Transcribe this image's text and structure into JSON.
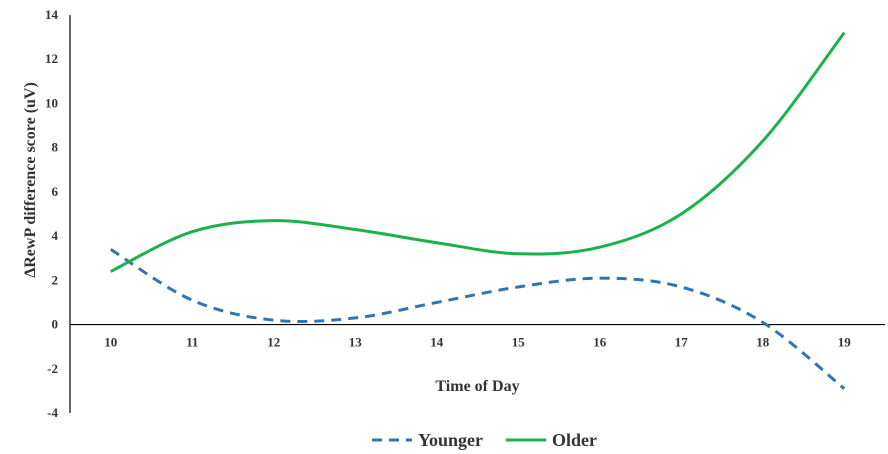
{
  "chart_data": {
    "type": "line",
    "title": "",
    "xlabel": "Time of Day",
    "ylabel": "ΔRewP difference score (uV)",
    "categories": [
      "10",
      "11",
      "12",
      "13",
      "14",
      "15",
      "16",
      "17",
      "18",
      "19"
    ],
    "ylim": [
      -4,
      14
    ],
    "yticks": [
      "14",
      "12",
      "10",
      "8",
      "6",
      "4",
      "2",
      "0",
      "-2",
      "-4"
    ],
    "grid": false,
    "legend_position": "bottom",
    "series": [
      {
        "name": "Younger",
        "style": "dashed",
        "color": "#2E75B6",
        "values": [
          3.4,
          1.1,
          0.2,
          0.3,
          1.0,
          1.7,
          2.1,
          1.7,
          0.1,
          -2.9
        ]
      },
      {
        "name": "Older",
        "style": "solid",
        "color": "#1DB14B",
        "values": [
          2.4,
          4.2,
          4.7,
          4.3,
          3.7,
          3.2,
          3.5,
          5.0,
          8.3,
          13.2
        ]
      }
    ]
  }
}
